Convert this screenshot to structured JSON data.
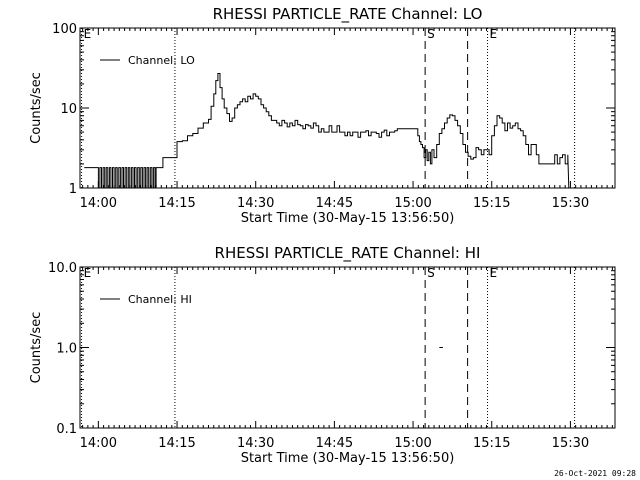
{
  "footer_timestamp": "26-Oct-2021 09:28",
  "chart_data": [
    {
      "type": "line",
      "title": "RHESSI PARTICLE_RATE Channel: LO",
      "xlabel": "Start Time (30-May-15 13:56:50)",
      "ylabel": "Counts/sec",
      "yscale": "log",
      "ylim": [
        1,
        100
      ],
      "ytick_labels": [
        "1",
        "10",
        "100"
      ],
      "xlim_minutes": [
        -3.5,
        98.5
      ],
      "xtick_labels": [
        "14:00",
        "14:15",
        "14:30",
        "14:45",
        "15:00",
        "15:15",
        "15:30"
      ],
      "xtick_minutes": [
        0,
        15,
        30,
        45,
        60,
        75,
        90
      ],
      "legend": {
        "label": "Channel: LO",
        "placement": "top-left"
      },
      "dotted_lines_minutes": [
        -3.2,
        14.6,
        74.2,
        90.8
      ],
      "dashed_lines_minutes": [
        62.3,
        70.4
      ],
      "markers": [
        {
          "label": "E",
          "minute": -3.2
        },
        {
          "label": "S",
          "minute": 62.3
        },
        {
          "label": "E",
          "minute": 74.2
        }
      ],
      "series": [
        {
          "name": "Channel: LO",
          "minute": [
            -2.7,
            -0.1,
            0,
            0.3,
            0.6,
            0.9,
            1.2,
            1.5,
            1.8,
            2.1,
            2.4,
            2.7,
            3,
            3.3,
            3.6,
            3.9,
            4.2,
            4.5,
            4.8,
            5.1,
            5.4,
            5.7,
            6,
            6.3,
            6.6,
            6.9,
            7.2,
            7.5,
            7.8,
            8.1,
            8.4,
            8.7,
            9,
            9.3,
            9.6,
            9.9,
            10.2,
            10.5,
            10.8,
            11,
            12,
            12.3,
            14.6,
            15,
            16,
            17,
            18,
            19,
            20,
            21,
            21.5,
            22,
            22.4,
            22.8,
            23.2,
            23.6,
            24,
            24.5,
            25,
            25.5,
            26,
            26.5,
            27,
            27.5,
            28,
            28.5,
            29,
            29.5,
            30,
            30.5,
            31,
            31.5,
            32,
            32.5,
            33,
            33.5,
            34,
            34.5,
            35,
            35.5,
            36,
            36.5,
            37,
            37.5,
            38,
            38.5,
            39,
            39.5,
            40,
            40.5,
            41,
            41.5,
            42,
            42.5,
            43,
            43.5,
            44,
            44.5,
            45,
            45.5,
            46,
            46.5,
            47,
            47.5,
            48,
            48.5,
            49,
            49.5,
            50,
            50.5,
            51,
            51.5,
            52,
            52.5,
            53,
            53.5,
            54,
            54.5,
            55,
            55.5,
            56,
            56.5,
            57,
            57.5,
            58,
            58.5,
            59,
            59.5,
            60,
            60.3,
            60.6,
            60.9,
            61.2,
            61.5,
            61.8,
            62.1,
            62.4,
            62.7,
            63,
            63.3,
            63.6,
            64,
            64.5,
            65,
            65.5,
            66,
            66.5,
            67,
            67.5,
            68,
            68.5,
            69,
            69.5,
            70,
            70.5,
            71,
            71.5,
            72,
            72.5,
            73,
            73.5,
            74,
            74.5,
            75,
            75.5,
            76,
            76.5,
            77,
            77.5,
            78,
            78.5,
            79,
            79.5,
            80,
            80.5,
            81,
            81.5,
            82,
            82.5,
            83,
            83.5,
            84,
            84.5,
            85,
            85.5,
            86,
            86.5,
            87,
            87.5,
            88,
            88.5,
            89,
            89.5
          ],
          "values": [
            1.8,
            1.8,
            1,
            1.8,
            1,
            1.8,
            1,
            1.8,
            1,
            1.8,
            1,
            1.8,
            1,
            1.8,
            1,
            1.8,
            1,
            1.8,
            1,
            1.8,
            1,
            1.8,
            1,
            1.8,
            1,
            1.8,
            1,
            1.8,
            1,
            1.8,
            1,
            1.8,
            1,
            1.8,
            1,
            1.8,
            1,
            1.8,
            1,
            1.8,
            1.8,
            2.4,
            2.4,
            3.8,
            3.9,
            4.5,
            4.8,
            5.6,
            6.5,
            7.2,
            10.5,
            15,
            22,
            27,
            18,
            13,
            10,
            8.5,
            6.8,
            7.5,
            10,
            11,
            12,
            13,
            12,
            14,
            13,
            15,
            14,
            13,
            11,
            10,
            9,
            8,
            7,
            7,
            6.5,
            6,
            7,
            6.5,
            5.8,
            6.5,
            6,
            7,
            6.2,
            6,
            5.5,
            6.2,
            6,
            5.6,
            6.5,
            6,
            5,
            5.5,
            5,
            5,
            6,
            5,
            5,
            6,
            5,
            5,
            4.5,
            5,
            4.5,
            5,
            5,
            4.3,
            5,
            5,
            5.2,
            4.5,
            5,
            5,
            4.8,
            4.3,
            5,
            5.3,
            4.5,
            5,
            5,
            5.2,
            5.5,
            5.5,
            5.5,
            5.5,
            5.5,
            5.5,
            5.5,
            5.5,
            5.5,
            4.5,
            3.8,
            3.5,
            3.2,
            2.4,
            3,
            2.2,
            2.8,
            2,
            3,
            2.4,
            3.5,
            4.8,
            5.5,
            6.5,
            7.5,
            8.2,
            8,
            7,
            6,
            4.8,
            3.5,
            2.8,
            2.5,
            2.3,
            2.4,
            3.2,
            3,
            2.6,
            3,
            3,
            2.6,
            4.5,
            6,
            8,
            7.5,
            6.5,
            5.2,
            6.5,
            5.6,
            6,
            6.5,
            5.5,
            5.2,
            4.5,
            3.5,
            2.6,
            3.5,
            3.5,
            2.6,
            2,
            2,
            2,
            2,
            2,
            2,
            2.6,
            2,
            2.4,
            2.6,
            2,
            2.6,
            2,
            2.6,
            2,
            2,
            2.6,
            2,
            1.5,
            2,
            1.5,
            1.2,
            1
          ]
        }
      ]
    },
    {
      "type": "line",
      "title": "RHESSI PARTICLE_RATE Channel: HI",
      "xlabel": "Start Time (30-May-15 13:56:50)",
      "ylabel": "Counts/sec",
      "yscale": "log",
      "ylim": [
        0.1,
        10
      ],
      "ytick_labels": [
        "0.1",
        "1.0",
        "10.0"
      ],
      "xlim_minutes": [
        -3.5,
        98.5
      ],
      "xtick_labels": [
        "14:00",
        "14:15",
        "14:30",
        "14:45",
        "15:00",
        "15:15",
        "15:30"
      ],
      "xtick_minutes": [
        0,
        15,
        30,
        45,
        60,
        75,
        90
      ],
      "legend": {
        "label": "Channel: HI",
        "placement": "top-left"
      },
      "dotted_lines_minutes": [
        -3.2,
        14.6,
        74.2,
        90.8
      ],
      "dashed_lines_minutes": [
        62.3,
        70.4
      ],
      "markers": [
        {
          "label": "E",
          "minute": -3.2
        },
        {
          "label": "S",
          "minute": 62.3
        },
        {
          "label": "E",
          "minute": 74.2
        }
      ],
      "series": [
        {
          "name": "Channel: HI",
          "minute": [
            65.0,
            65.5
          ],
          "values": [
            1.0,
            1.0
          ]
        }
      ]
    }
  ]
}
